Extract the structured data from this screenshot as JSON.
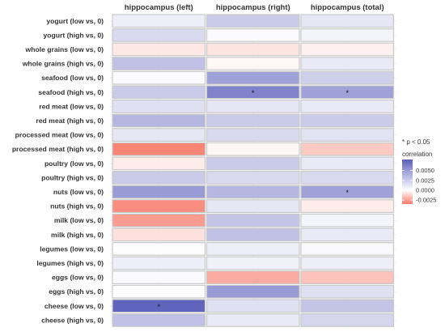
{
  "chart_data": {
    "type": "heatmap",
    "title": "",
    "xlabel": "",
    "ylabel": "",
    "columns": [
      "hippocampus (left)",
      "hippocampus (right)",
      "hippocampus (total)"
    ],
    "rows": [
      "yogurt (low vs, 0)",
      "yogurt (high vs, 0)",
      "whole grains (low vs, 0)",
      "whole grains (high vs, 0)",
      "seafood (low vs, 0)",
      "seafood (high vs, 0)",
      "red meat (low vs, 0)",
      "red meat (high vs, 0)",
      "processed meat (low vs, 0)",
      "processed meat (high vs, 0)",
      "poultry (low vs, 0)",
      "poultry (high vs, 0)",
      "nuts (low vs, 0)",
      "nuts (high vs, 0)",
      "milk (low vs, 0)",
      "milk (high vs, 0)",
      "legumes (low vs, 0)",
      "legumes (high vs, 0)",
      "eggs (low vs, 0)",
      "eggs (high vs, 0)",
      "cheese (low vs, 0)",
      "cheese (high vs, 0)"
    ],
    "values": [
      [
        0.0008,
        0.0025,
        0.0012
      ],
      [
        0.0018,
        0.0002,
        0.0005
      ],
      [
        -0.0006,
        -0.0007,
        -0.0004
      ],
      [
        0.003,
        -0.0002,
        0.001
      ],
      [
        0.0002,
        0.0045,
        0.0023
      ],
      [
        0.0025,
        0.006,
        0.0045
      ],
      [
        0.0015,
        0.0012,
        0.001
      ],
      [
        0.0035,
        0.0025,
        0.0025
      ],
      [
        0.0012,
        0.0018,
        0.0014
      ],
      [
        -0.0032,
        -0.0002,
        -0.0014
      ],
      [
        -0.0005,
        0.0025,
        0.001
      ],
      [
        0.0025,
        0.0018,
        0.0018
      ],
      [
        0.0048,
        0.0035,
        0.0045
      ],
      [
        -0.003,
        0.0012,
        -0.0005
      ],
      [
        -0.0026,
        0.0028,
        0.0005
      ],
      [
        -0.0008,
        0.003,
        0.001
      ],
      [
        0.0001,
        0.0008,
        0.0003
      ],
      [
        0.0008,
        0.0007,
        0.0008
      ],
      [
        0.0002,
        -0.0022,
        -0.0016
      ],
      [
        0.0001,
        0.0048,
        0.0015
      ],
      [
        0.0075,
        0.0015,
        0.0028
      ],
      [
        0.003,
        0.001,
        0.002
      ]
    ],
    "significant": [
      [
        20,
        0
      ],
      [
        5,
        1
      ],
      [
        5,
        2
      ],
      [
        12,
        2
      ]
    ],
    "significance_marker": "*",
    "legend": {
      "title": "correlation",
      "ticks": [
        0.005,
        0.0025,
        0.0,
        -0.0025
      ],
      "tick_labels": [
        "0.0050",
        "0.0025",
        "0.0000",
        "-0.0025"
      ],
      "range": [
        -0.0035,
        0.0078
      ],
      "note": "* p < 0.05",
      "placement": "right"
    },
    "colors": {
      "high": "#5a5eb9",
      "mid": "#ffffff",
      "low": "#f87a6a",
      "cell_border": "#c9c9c9",
      "grid": "#ebebeb"
    }
  }
}
